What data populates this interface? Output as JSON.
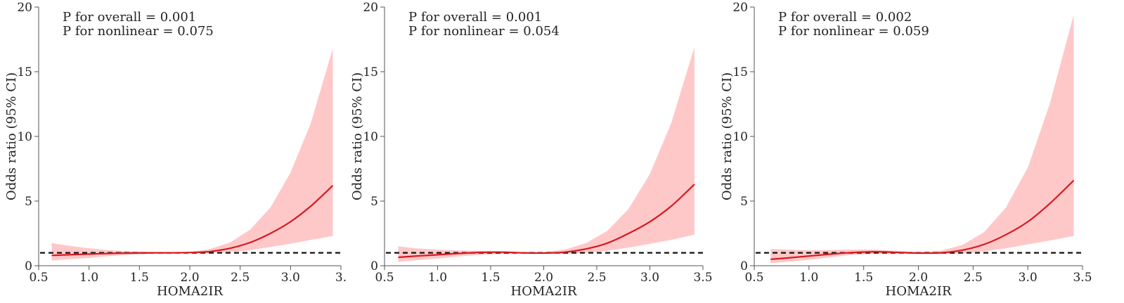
{
  "colors": {
    "line": "#d71920",
    "band": "#ffc8c8",
    "reference": "#111111",
    "axis": "#555555"
  },
  "chart_data": [
    {
      "type": "line",
      "title": "",
      "xlabel": "HOMA2IR",
      "ylabel": "Odds ratio (95% CI)",
      "xlim": [
        0.5,
        3.5
      ],
      "ylim": [
        0,
        20
      ],
      "xticks": [
        "0.5",
        "1.0",
        "1.5",
        "2.0",
        "2.5",
        "3.0",
        "3."
      ],
      "yticks": [
        "0",
        "5",
        "10",
        "15",
        "20"
      ],
      "grid": false,
      "reference_line": 1,
      "annotations": [
        "P for overall = 0.001",
        "P for nonlinear = 0.075"
      ],
      "x": [
        0.63,
        0.8,
        1.0,
        1.2,
        1.4,
        1.6,
        1.8,
        2.0,
        2.2,
        2.4,
        2.6,
        2.8,
        3.0,
        3.2,
        3.42
      ],
      "y": [
        0.8,
        0.85,
        0.9,
        0.95,
        0.98,
        1.0,
        1.0,
        1.02,
        1.1,
        1.35,
        1.8,
        2.5,
        3.4,
        4.6,
        6.2
      ],
      "y_lower": [
        0.4,
        0.5,
        0.6,
        0.75,
        0.85,
        0.92,
        0.98,
        0.98,
        0.98,
        1.05,
        1.2,
        1.45,
        1.7,
        2.0,
        2.3
      ],
      "y_upper": [
        1.75,
        1.55,
        1.35,
        1.2,
        1.12,
        1.06,
        1.02,
        1.06,
        1.3,
        1.8,
        2.8,
        4.5,
        7.2,
        11.0,
        16.8
      ]
    },
    {
      "type": "line",
      "title": "",
      "xlabel": "HOMA2IR",
      "ylabel": "Odds ratio (95% CI)",
      "xlim": [
        0.5,
        3.5
      ],
      "ylim": [
        0,
        20
      ],
      "xticks": [
        "0.5",
        "1.0",
        "1.5",
        "2.0",
        "2.5",
        "3.0",
        "3.5"
      ],
      "yticks": [
        "0",
        "5",
        "10",
        "15",
        "20"
      ],
      "grid": false,
      "reference_line": 1,
      "annotations": [
        "P for overall = 0.001",
        "P for nonlinear = 0.054"
      ],
      "x": [
        0.63,
        0.8,
        1.0,
        1.2,
        1.4,
        1.6,
        1.8,
        2.0,
        2.2,
        2.4,
        2.6,
        2.8,
        3.0,
        3.2,
        3.42
      ],
      "y": [
        0.65,
        0.75,
        0.85,
        0.95,
        1.03,
        1.05,
        1.0,
        0.98,
        1.05,
        1.3,
        1.75,
        2.5,
        3.4,
        4.6,
        6.3
      ],
      "y_lower": [
        0.3,
        0.42,
        0.55,
        0.72,
        0.85,
        0.92,
        0.95,
        0.92,
        0.92,
        1.0,
        1.15,
        1.4,
        1.7,
        2.0,
        2.4
      ],
      "y_upper": [
        1.5,
        1.35,
        1.25,
        1.18,
        1.15,
        1.12,
        1.05,
        1.06,
        1.25,
        1.75,
        2.7,
        4.4,
        7.1,
        11.0,
        16.9
      ]
    },
    {
      "type": "line",
      "title": "",
      "xlabel": "HOMA2IR",
      "ylabel": "Odds ratio (95% CI)",
      "xlim": [
        0.5,
        3.5
      ],
      "ylim": [
        0,
        20
      ],
      "xticks": [
        "0.5",
        "1.0",
        "1.5",
        "2.0",
        "2.5",
        "3.0",
        "3.5"
      ],
      "yticks": [
        "0",
        "5",
        "10",
        "15",
        "20"
      ],
      "grid": false,
      "reference_line": 1,
      "annotations": [
        "P for overall = 0.002",
        "P for nonlinear = 0.059"
      ],
      "x": [
        0.65,
        0.8,
        1.0,
        1.2,
        1.4,
        1.6,
        1.8,
        2.0,
        2.2,
        2.4,
        2.6,
        2.8,
        3.0,
        3.2,
        3.42
      ],
      "y": [
        0.5,
        0.6,
        0.75,
        0.9,
        1.02,
        1.08,
        1.03,
        0.98,
        1.0,
        1.2,
        1.65,
        2.4,
        3.4,
        4.8,
        6.6
      ],
      "y_lower": [
        0.2,
        0.3,
        0.45,
        0.65,
        0.85,
        0.93,
        0.95,
        0.92,
        0.9,
        0.95,
        1.1,
        1.35,
        1.65,
        1.95,
        2.3
      ],
      "y_upper": [
        1.3,
        1.25,
        1.2,
        1.22,
        1.25,
        1.25,
        1.15,
        1.06,
        1.15,
        1.6,
        2.6,
        4.5,
        7.6,
        12.5,
        19.4
      ]
    }
  ]
}
